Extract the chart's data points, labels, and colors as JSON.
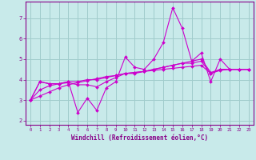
{
  "xlabel": "Windchill (Refroidissement éolien,°C)",
  "background_color": "#c8eaea",
  "grid_color": "#a0cccc",
  "line_color": "#cc00cc",
  "spine_color": "#880088",
  "tick_color": "#880088",
  "xlim": [
    -0.5,
    23.5
  ],
  "ylim": [
    1.8,
    7.8
  ],
  "x_ticks": [
    0,
    1,
    2,
    3,
    4,
    5,
    6,
    7,
    8,
    9,
    10,
    11,
    12,
    13,
    14,
    15,
    16,
    17,
    18,
    19,
    20,
    21,
    22,
    23
  ],
  "y_ticks": [
    2,
    3,
    4,
    5,
    6,
    7
  ],
  "series": [
    [
      3.0,
      3.9,
      3.8,
      3.8,
      3.9,
      2.4,
      3.1,
      2.5,
      3.6,
      3.9,
      5.1,
      4.6,
      4.5,
      5.0,
      5.8,
      7.5,
      6.5,
      4.9,
      5.3,
      3.9,
      5.0,
      4.5,
      4.5,
      4.5
    ],
    [
      3.0,
      3.9,
      3.8,
      3.8,
      3.85,
      3.75,
      3.75,
      3.65,
      3.9,
      4.1,
      4.3,
      4.3,
      4.4,
      4.5,
      4.6,
      4.7,
      4.8,
      4.8,
      4.9,
      4.3,
      4.5,
      4.5,
      4.5,
      4.5
    ],
    [
      3.0,
      3.5,
      3.7,
      3.8,
      3.9,
      3.9,
      4.0,
      4.0,
      4.1,
      4.2,
      4.3,
      4.35,
      4.4,
      4.5,
      4.6,
      4.7,
      4.8,
      4.9,
      5.0,
      4.35,
      4.5,
      4.5,
      4.5,
      4.5
    ],
    [
      3.0,
      3.2,
      3.4,
      3.6,
      3.75,
      3.85,
      3.95,
      4.05,
      4.15,
      4.2,
      4.3,
      4.35,
      4.4,
      4.45,
      4.5,
      4.55,
      4.6,
      4.65,
      4.7,
      4.3,
      4.45,
      4.5,
      4.5,
      4.5
    ]
  ]
}
